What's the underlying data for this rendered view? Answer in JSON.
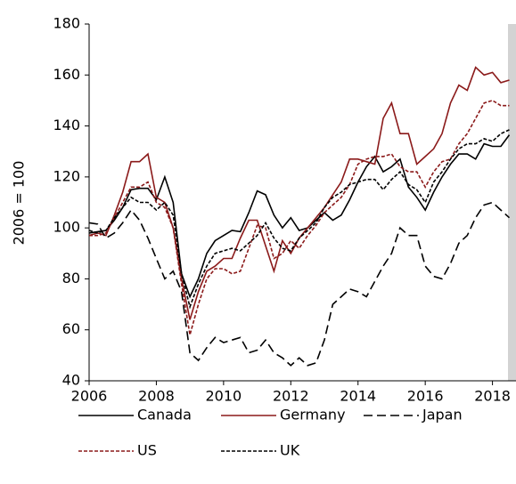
{
  "chart_data": {
    "type": "line",
    "ylabel": "2006 = 100",
    "x": [
      2006,
      2006.25,
      2006.5,
      2006.75,
      2007,
      2007.25,
      2007.5,
      2007.75,
      2008,
      2008.25,
      2008.5,
      2008.75,
      2009,
      2009.25,
      2009.5,
      2009.75,
      2010,
      2010.25,
      2010.5,
      2010.75,
      2011,
      2011.25,
      2011.5,
      2011.75,
      2012,
      2012.25,
      2012.5,
      2012.75,
      2013,
      2013.25,
      2013.5,
      2013.75,
      2014,
      2014.25,
      2014.5,
      2014.75,
      2015,
      2015.25,
      2015.5,
      2015.75,
      2016,
      2016.25,
      2016.5,
      2016.75,
      2017,
      2017.25,
      2017.5,
      2017.75,
      2018,
      2018.25,
      2018.5
    ],
    "series": [
      {
        "name": "Canada",
        "color": "#000000",
        "dash": "solid",
        "values": [
          98,
          98.5,
          99,
          103,
          108,
          115,
          115.5,
          115.5,
          111,
          120,
          110,
          82,
          73,
          80,
          90,
          95,
          97,
          99,
          98.5,
          106,
          114.5,
          113,
          105,
          100,
          104,
          99,
          100,
          103,
          106,
          103,
          105,
          111,
          118,
          124,
          128,
          122,
          124,
          127,
          116,
          112,
          107,
          114,
          120,
          125,
          129,
          129,
          127,
          133,
          132,
          132,
          136.5
        ]
      },
      {
        "name": "Germany",
        "color": "#8b1a1a",
        "dash": "solid",
        "values": [
          97,
          98,
          97,
          105,
          114,
          126,
          126,
          129,
          112,
          110,
          100,
          80,
          64,
          75,
          83,
          85,
          88,
          88,
          96,
          103,
          103,
          93,
          83,
          95,
          90,
          96,
          100,
          104,
          108,
          113,
          118,
          127,
          127,
          126,
          125,
          143,
          149,
          137,
          137,
          125,
          128,
          131,
          137,
          149,
          156,
          154,
          163,
          160,
          161,
          157,
          158
        ]
      },
      {
        "name": "Japan",
        "color": "#000000",
        "dash": "long",
        "values": [
          102,
          101.5,
          96,
          98,
          102,
          107,
          103,
          96,
          88,
          80,
          83,
          75,
          51,
          48,
          53,
          57,
          55,
          56,
          57,
          51,
          52,
          56,
          51,
          49,
          46,
          49,
          46,
          47,
          56,
          70,
          73,
          76,
          75,
          73,
          79,
          85,
          90,
          100,
          97,
          97,
          85,
          81,
          80,
          86,
          94,
          97,
          104,
          109,
          110,
          107,
          104
        ]
      },
      {
        "name": "US",
        "color": "#8b1a1a",
        "dash": "short",
        "values": [
          97,
          97,
          98,
          104,
          110,
          116,
          116,
          118,
          110,
          108,
          100,
          78,
          58,
          70,
          80,
          84,
          84,
          82,
          83,
          92,
          101,
          100,
          88,
          90,
          95,
          92,
          97,
          101,
          106,
          109,
          112,
          117,
          125,
          127,
          128,
          128,
          129,
          124,
          122,
          122,
          116,
          122,
          126,
          127,
          133,
          137,
          143,
          149,
          150,
          148,
          148
        ]
      },
      {
        "name": "UK",
        "color": "#000000",
        "dash": "short",
        "values": [
          99,
          98,
          99,
          104,
          108,
          112,
          110,
          110,
          107,
          110,
          105,
          82,
          69,
          78,
          85,
          90,
          91,
          92,
          91,
          94,
          97,
          102,
          96,
          92,
          91,
          96,
          99,
          102,
          108,
          112,
          114,
          117,
          118,
          119,
          119,
          115,
          119,
          122,
          117,
          115,
          110,
          118,
          122,
          127,
          131,
          133,
          133,
          135,
          134,
          137,
          138.5
        ]
      }
    ],
    "xlim": [
      2006,
      2018.7
    ],
    "xticks": [
      2006,
      2008,
      2010,
      2012,
      2014,
      2016,
      2018
    ],
    "ylim": [
      40,
      180
    ],
    "yticks": [
      40,
      60,
      80,
      100,
      120,
      140,
      160,
      180
    ],
    "grid": false
  }
}
